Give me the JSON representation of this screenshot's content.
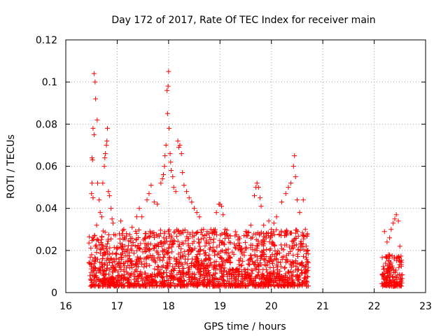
{
  "chart_data": {
    "type": "scatter",
    "title": "Day 172 of 2017, Rate Of TEC Index for receiver main",
    "xlabel": "GPS time / hours",
    "ylabel": "ROTI / TECUs",
    "xlim": [
      16,
      23
    ],
    "ylim": [
      0,
      0.12
    ],
    "x_ticks": [
      "16",
      "17",
      "18",
      "19",
      "20",
      "21",
      "22",
      "23"
    ],
    "y_ticks": [
      "0",
      "0.02",
      "0.04",
      "0.06",
      "0.08",
      "0.1",
      "0.12"
    ],
    "grid": true,
    "marker": "+",
    "color": "#ff0000",
    "series": [
      {
        "name": "ROTI",
        "points": [
          [
            16.55,
            0.104
          ],
          [
            16.57,
            0.1
          ],
          [
            16.58,
            0.092
          ],
          [
            16.61,
            0.082
          ],
          [
            16.53,
            0.078
          ],
          [
            16.55,
            0.075
          ],
          [
            16.51,
            0.064
          ],
          [
            16.52,
            0.063
          ],
          [
            16.51,
            0.052
          ],
          [
            16.5,
            0.047
          ],
          [
            16.53,
            0.045
          ],
          [
            16.62,
            0.052
          ],
          [
            16.65,
            0.044
          ],
          [
            16.72,
            0.052
          ],
          [
            16.75,
            0.06
          ],
          [
            16.76,
            0.064
          ],
          [
            16.77,
            0.066
          ],
          [
            16.79,
            0.07
          ],
          [
            16.8,
            0.072
          ],
          [
            16.81,
            0.078
          ],
          [
            16.83,
            0.048
          ],
          [
            16.85,
            0.046
          ],
          [
            16.88,
            0.04
          ],
          [
            16.67,
            0.038
          ],
          [
            16.7,
            0.036
          ],
          [
            16.9,
            0.035
          ],
          [
            16.92,
            0.033
          ],
          [
            16.6,
            0.032
          ],
          [
            17.07,
            0.034
          ],
          [
            17.13,
            0.03
          ],
          [
            17.18,
            0.028
          ],
          [
            17.29,
            0.031
          ],
          [
            17.38,
            0.036
          ],
          [
            17.43,
            0.04
          ],
          [
            17.48,
            0.036
          ],
          [
            17.58,
            0.044
          ],
          [
            17.62,
            0.047
          ],
          [
            17.66,
            0.051
          ],
          [
            17.72,
            0.043
          ],
          [
            17.78,
            0.042
          ],
          [
            17.85,
            0.052
          ],
          [
            17.88,
            0.054
          ],
          [
            17.9,
            0.056
          ],
          [
            17.92,
            0.06
          ],
          [
            17.93,
            0.065
          ],
          [
            17.95,
            0.07
          ],
          [
            17.98,
            0.085
          ],
          [
            17.97,
            0.096
          ],
          [
            17.99,
            0.098
          ],
          [
            18.0,
            0.105
          ],
          [
            18.01,
            0.078
          ],
          [
            18.03,
            0.066
          ],
          [
            18.04,
            0.062
          ],
          [
            18.05,
            0.058
          ],
          [
            18.08,
            0.055
          ],
          [
            18.1,
            0.05
          ],
          [
            18.14,
            0.048
          ],
          [
            18.18,
            0.072
          ],
          [
            18.2,
            0.069
          ],
          [
            18.22,
            0.07
          ],
          [
            18.25,
            0.066
          ],
          [
            18.27,
            0.057
          ],
          [
            18.3,
            0.051
          ],
          [
            18.35,
            0.048
          ],
          [
            18.4,
            0.045
          ],
          [
            18.45,
            0.043
          ],
          [
            18.5,
            0.04
          ],
          [
            18.55,
            0.038
          ],
          [
            18.6,
            0.036
          ],
          [
            18.68,
            0.03
          ],
          [
            18.75,
            0.029
          ],
          [
            18.85,
            0.028
          ],
          [
            18.93,
            0.038
          ],
          [
            18.98,
            0.042
          ],
          [
            19.0,
            0.042
          ],
          [
            19.03,
            0.041
          ],
          [
            19.06,
            0.037
          ],
          [
            19.1,
            0.03
          ],
          [
            19.2,
            0.027
          ],
          [
            19.35,
            0.025
          ],
          [
            19.5,
            0.029
          ],
          [
            19.6,
            0.032
          ],
          [
            19.67,
            0.046
          ],
          [
            19.7,
            0.05
          ],
          [
            19.72,
            0.052
          ],
          [
            19.75,
            0.05
          ],
          [
            19.78,
            0.045
          ],
          [
            19.8,
            0.041
          ],
          [
            19.85,
            0.032
          ],
          [
            19.9,
            0.028
          ],
          [
            19.95,
            0.034
          ],
          [
            20.0,
            0.03
          ],
          [
            20.05,
            0.033
          ],
          [
            20.1,
            0.036
          ],
          [
            20.2,
            0.043
          ],
          [
            20.28,
            0.047
          ],
          [
            20.33,
            0.05
          ],
          [
            20.38,
            0.052
          ],
          [
            20.43,
            0.06
          ],
          [
            20.45,
            0.065
          ],
          [
            20.47,
            0.055
          ],
          [
            20.5,
            0.044
          ],
          [
            20.55,
            0.038
          ],
          [
            20.62,
            0.044
          ],
          [
            20.66,
            0.03
          ],
          [
            20.7,
            0.028
          ],
          [
            22.2,
            0.029
          ],
          [
            22.25,
            0.024
          ],
          [
            22.3,
            0.026
          ],
          [
            22.33,
            0.03
          ],
          [
            22.37,
            0.033
          ],
          [
            22.4,
            0.035
          ],
          [
            22.43,
            0.037
          ],
          [
            22.47,
            0.034
          ],
          [
            22.5,
            0.022
          ],
          [
            22.28,
            0.018
          ]
        ],
        "dense_bands": [
          {
            "x_range": [
              16.45,
              20.72
            ],
            "y_range": [
              0.003,
              0.03
            ]
          },
          {
            "x_range": [
              22.15,
              22.55
            ],
            "y_range": [
              0.003,
              0.018
            ]
          }
        ]
      }
    ]
  }
}
